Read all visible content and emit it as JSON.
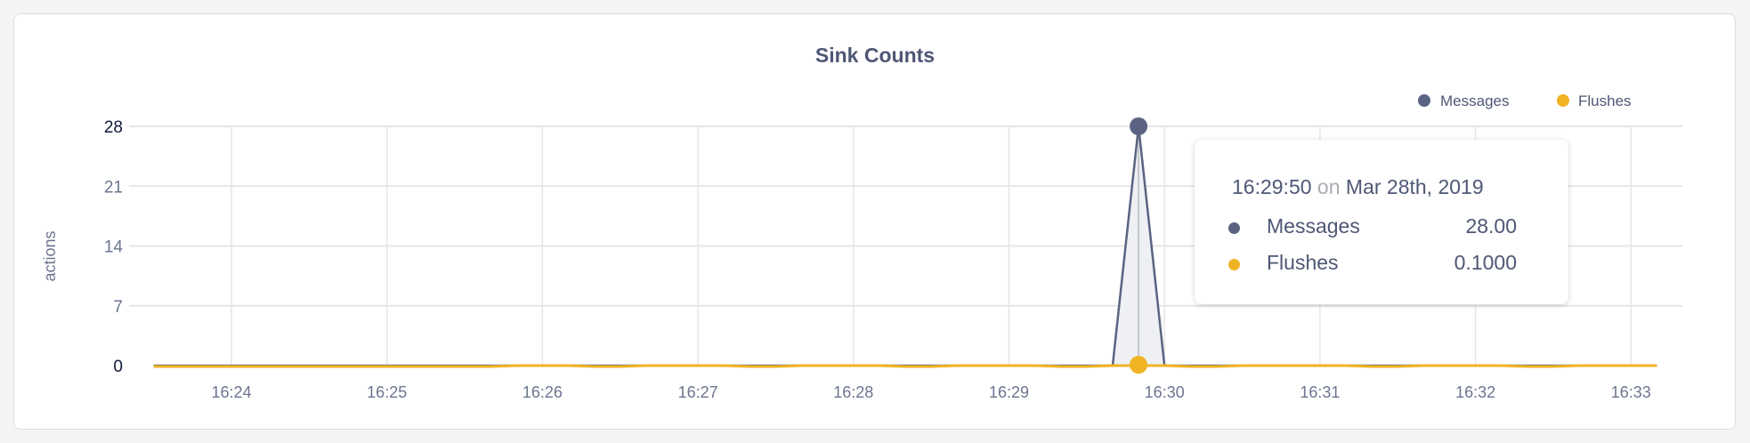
{
  "chart_data": {
    "type": "line",
    "title": "Sink Counts",
    "xlabel": "",
    "ylabel": "actions",
    "ylim": [
      0,
      28
    ],
    "yticks": [
      "0",
      "7",
      "14",
      "21",
      "28"
    ],
    "xticks": [
      "16:24",
      "16:25",
      "16:26",
      "16:27",
      "16:28",
      "16:29",
      "16:30",
      "16:31",
      "16:32",
      "16:33"
    ],
    "grid": true,
    "legend_position": "top-right",
    "x": [
      "16:23:30",
      "16:23:40",
      "16:23:50",
      "16:24:00",
      "16:24:10",
      "16:24:20",
      "16:24:30",
      "16:24:40",
      "16:24:50",
      "16:25:00",
      "16:25:10",
      "16:25:20",
      "16:25:30",
      "16:25:40",
      "16:25:50",
      "16:26:00",
      "16:26:10",
      "16:26:20",
      "16:26:30",
      "16:26:40",
      "16:26:50",
      "16:27:00",
      "16:27:10",
      "16:27:20",
      "16:27:30",
      "16:27:40",
      "16:27:50",
      "16:28:00",
      "16:28:10",
      "16:28:20",
      "16:28:30",
      "16:28:40",
      "16:28:50",
      "16:29:00",
      "16:29:10",
      "16:29:20",
      "16:29:30",
      "16:29:40",
      "16:29:50",
      "16:30:00",
      "16:30:10",
      "16:30:20",
      "16:30:30",
      "16:30:40",
      "16:30:50",
      "16:31:00",
      "16:31:10",
      "16:31:20",
      "16:31:30",
      "16:31:40",
      "16:31:50",
      "16:32:00",
      "16:32:10",
      "16:32:20",
      "16:32:30",
      "16:32:40",
      "16:32:50",
      "16:33:00",
      "16:33:10"
    ],
    "series": [
      {
        "name": "Messages",
        "color": "#5a6482",
        "values": [
          0,
          0,
          0,
          0,
          0,
          0,
          0,
          0,
          0,
          0,
          0,
          0,
          0,
          0,
          0,
          0,
          0,
          0,
          0,
          0,
          0,
          0,
          0,
          0,
          0,
          0,
          0,
          0,
          0,
          0,
          0,
          0,
          0,
          0,
          0,
          0,
          0,
          0,
          28,
          0,
          0,
          0,
          0,
          0,
          0,
          0,
          0,
          0,
          0,
          0,
          0,
          0,
          0,
          0,
          0,
          0,
          0,
          0,
          0
        ]
      },
      {
        "name": "Flushes",
        "color": "#f0b323",
        "values": [
          0,
          0,
          0,
          0,
          0,
          0,
          0,
          0,
          0,
          0,
          0,
          0,
          0,
          0,
          0.1,
          0.1,
          0.1,
          0,
          0,
          0.1,
          0.1,
          0.1,
          0.1,
          0,
          0,
          0.1,
          0.1,
          0.1,
          0.1,
          0,
          0,
          0.1,
          0.1,
          0.1,
          0.1,
          0,
          0,
          0.1,
          0.1,
          0.1,
          0,
          0,
          0.1,
          0.1,
          0.1,
          0.1,
          0.1,
          0,
          0,
          0.1,
          0.1,
          0.1,
          0.1,
          0,
          0,
          0.1,
          0.1,
          0.1,
          0.1
        ]
      }
    ],
    "tooltip": {
      "time": "16:29:50",
      "on": "on",
      "date": "Mar 28th, 2019",
      "rows": [
        {
          "label": "Messages",
          "value": "28.00",
          "color": "#5a6482"
        },
        {
          "label": "Flushes",
          "value": "0.1000",
          "color": "#f0b323"
        }
      ]
    }
  }
}
